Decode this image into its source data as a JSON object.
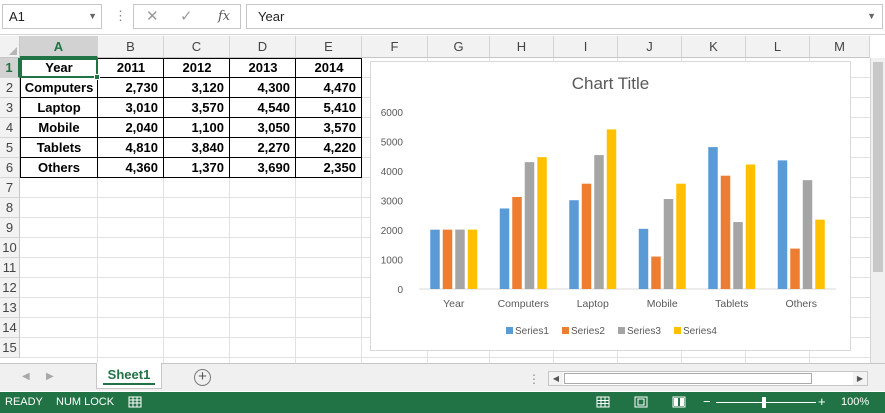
{
  "formula_bar": {
    "name_box": "A1",
    "cancel_icon": "✕",
    "enter_icon": "✓",
    "fx_label": "fx",
    "formula_value": "Year"
  },
  "columns": [
    "A",
    "B",
    "C",
    "D",
    "E",
    "F",
    "G",
    "H",
    "I",
    "J",
    "K",
    "L",
    "M"
  ],
  "rows": [
    "1",
    "2",
    "3",
    "4",
    "5",
    "6",
    "7",
    "8",
    "9",
    "10",
    "11",
    "12",
    "13",
    "14",
    "15"
  ],
  "table": {
    "header": [
      "Year",
      "2011",
      "2012",
      "2013",
      "2014"
    ],
    "rows": [
      [
        "Computers",
        "2,730",
        "3,120",
        "4,300",
        "4,470"
      ],
      [
        "Laptop",
        "3,010",
        "3,570",
        "4,540",
        "5,410"
      ],
      [
        "Mobile",
        "2,040",
        "1,100",
        "3,050",
        "3,570"
      ],
      [
        "Tablets",
        "4,810",
        "3,840",
        "2,270",
        "4,220"
      ],
      [
        "Others",
        "4,360",
        "1,370",
        "3,690",
        "2,350"
      ]
    ]
  },
  "chart_data": {
    "type": "bar",
    "title": "Chart Title",
    "categories": [
      "Year",
      "Computers",
      "Laptop",
      "Mobile",
      "Tablets",
      "Others"
    ],
    "series": [
      {
        "name": "Series1",
        "color": "#5b9bd5",
        "values": [
          2011,
          2730,
          3010,
          2040,
          4810,
          4360
        ]
      },
      {
        "name": "Series2",
        "color": "#ed7d31",
        "values": [
          2012,
          3120,
          3570,
          1100,
          3840,
          1370
        ]
      },
      {
        "name": "Series3",
        "color": "#a5a5a5",
        "values": [
          2013,
          4300,
          4540,
          3050,
          2270,
          3690
        ]
      },
      {
        "name": "Series4",
        "color": "#ffc000",
        "values": [
          2014,
          4470,
          5410,
          3570,
          4220,
          2350
        ]
      }
    ],
    "ylim": [
      0,
      6000
    ],
    "yticks": [
      "0",
      "1000",
      "2000",
      "3000",
      "4000",
      "5000",
      "6000"
    ],
    "grid": false,
    "legend": "bottom"
  },
  "sheet_tabs": {
    "active": "Sheet1",
    "add_icon": "+"
  },
  "status_bar": {
    "ready": "READY",
    "numlock": "NUM LOCK",
    "zoom": "100%",
    "zoom_minus": "−",
    "zoom_plus": "+"
  },
  "colors": {
    "accent": "#217346"
  }
}
